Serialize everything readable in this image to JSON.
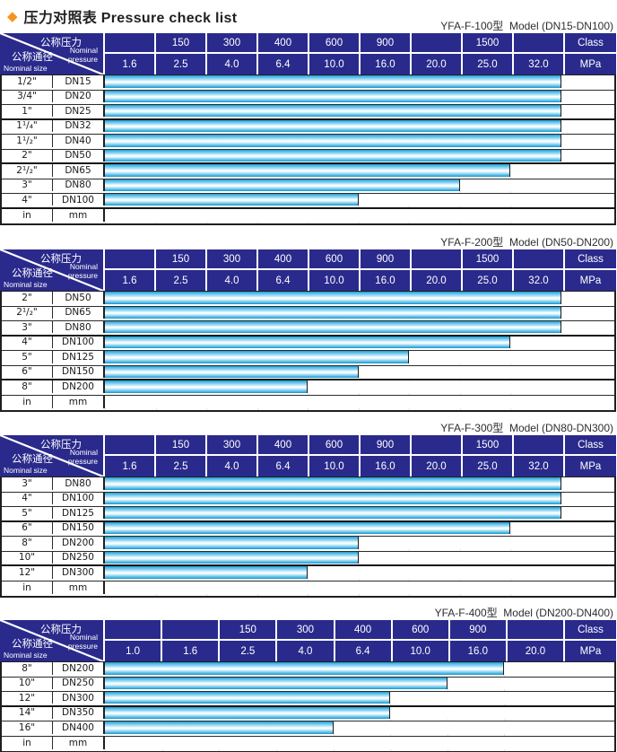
{
  "title": {
    "bullet_icon": "diamond-icon",
    "text": "压力对照表 Pressure check list"
  },
  "header_corner": {
    "pressure_zh": "公称压力",
    "pressure_en_1": "Nominal",
    "pressure_en_2": "pressure",
    "size_zh": "公称通径",
    "size_en": "Nominal size"
  },
  "colors": {
    "header_navy": "#2a2a8c",
    "bar_cyan": "#2fa9dc",
    "accent_orange": "#f5941e"
  },
  "tables": [
    {
      "model_label": "YFA-F-100型  Model (DN15-DN100)",
      "class_row": [
        "",
        "150",
        "300",
        "400",
        "600",
        "900",
        "",
        "1500",
        "",
        "Class"
      ],
      "mpa_row": [
        "1.6",
        "2.5",
        "4.0",
        "6.4",
        "10.0",
        "16.0",
        "20.0",
        "25.0",
        "32.0",
        "MPa"
      ],
      "rows": [
        {
          "inch": "1/2\"",
          "dn": "DN15",
          "bar_cols": 9
        },
        {
          "inch": "3/4\"",
          "dn": "DN20",
          "bar_cols": 9
        },
        {
          "inch": "1\"",
          "dn": "DN25",
          "bar_cols": 9
        },
        {
          "inch": "1¹/₄\"",
          "dn": "DN32",
          "bar_cols": 9
        },
        {
          "inch": "1¹/₂\"",
          "dn": "DN40",
          "bar_cols": 9
        },
        {
          "inch": "2\"",
          "dn": "DN50",
          "bar_cols": 9
        },
        {
          "inch": "2¹/₂\"",
          "dn": "DN65",
          "bar_cols": 8
        },
        {
          "inch": "3\"",
          "dn": "DN80",
          "bar_cols": 7
        },
        {
          "inch": "4\"",
          "dn": "DN100",
          "bar_cols": 5
        },
        {
          "inch": "in",
          "dn": "mm",
          "bar_cols": 0
        }
      ]
    },
    {
      "model_label": "YFA-F-200型  Model (DN50-DN200)",
      "class_row": [
        "",
        "150",
        "300",
        "400",
        "600",
        "900",
        "",
        "1500",
        "",
        "Class"
      ],
      "mpa_row": [
        "1.6",
        "2.5",
        "4.0",
        "6.4",
        "10.0",
        "16.0",
        "20.0",
        "25.0",
        "32.0",
        "MPa"
      ],
      "rows": [
        {
          "inch": "2\"",
          "dn": "DN50",
          "bar_cols": 9
        },
        {
          "inch": "2¹/₂\"",
          "dn": "DN65",
          "bar_cols": 9
        },
        {
          "inch": "3\"",
          "dn": "DN80",
          "bar_cols": 9
        },
        {
          "inch": "4\"",
          "dn": "DN100",
          "bar_cols": 8
        },
        {
          "inch": "5\"",
          "dn": "DN125",
          "bar_cols": 6
        },
        {
          "inch": "6\"",
          "dn": "DN150",
          "bar_cols": 5
        },
        {
          "inch": "8\"",
          "dn": "DN200",
          "bar_cols": 4
        },
        {
          "inch": "in",
          "dn": "mm",
          "bar_cols": 0
        }
      ]
    },
    {
      "model_label": "YFA-F-300型  Model (DN80-DN300)",
      "class_row": [
        "",
        "150",
        "300",
        "400",
        "600",
        "900",
        "",
        "1500",
        "",
        "Class"
      ],
      "mpa_row": [
        "1.6",
        "2.5",
        "4.0",
        "6.4",
        "10.0",
        "16.0",
        "20.0",
        "25.0",
        "32.0",
        "MPa"
      ],
      "rows": [
        {
          "inch": "3\"",
          "dn": "DN80",
          "bar_cols": 9
        },
        {
          "inch": "4\"",
          "dn": "DN100",
          "bar_cols": 9
        },
        {
          "inch": "5\"",
          "dn": "DN125",
          "bar_cols": 9
        },
        {
          "inch": "6\"",
          "dn": "DN150",
          "bar_cols": 8
        },
        {
          "inch": "8\"",
          "dn": "DN200",
          "bar_cols": 5
        },
        {
          "inch": "10\"",
          "dn": "DN250",
          "bar_cols": 5
        },
        {
          "inch": "12\"",
          "dn": "DN300",
          "bar_cols": 4
        },
        {
          "inch": "in",
          "dn": "mm",
          "bar_cols": 0
        }
      ]
    },
    {
      "model_label": "YFA-F-400型  Model (DN200-DN400)",
      "class_row": [
        "",
        "",
        "150",
        "300",
        "400",
        "600",
        "900",
        "",
        "Class"
      ],
      "mpa_row": [
        "1.0",
        "1.6",
        "2.5",
        "4.0",
        "6.4",
        "10.0",
        "16.0",
        "20.0",
        "MPa"
      ],
      "rows": [
        {
          "inch": "8\"",
          "dn": "DN200",
          "bar_cols": 7
        },
        {
          "inch": "10\"",
          "dn": "DN250",
          "bar_cols": 6
        },
        {
          "inch": "12\"",
          "dn": "DN300",
          "bar_cols": 5
        },
        {
          "inch": "14\"",
          "dn": "DN350",
          "bar_cols": 5
        },
        {
          "inch": "16\"",
          "dn": "DN400",
          "bar_cols": 4
        },
        {
          "inch": "in",
          "dn": "mm",
          "bar_cols": 0
        }
      ]
    }
  ]
}
